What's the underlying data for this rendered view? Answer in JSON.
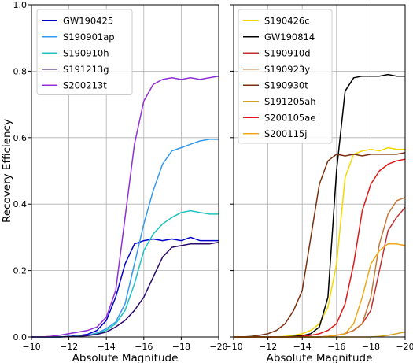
{
  "chart_data": [
    {
      "type": "line",
      "panel": "left",
      "xlabel": "Absolute Magnitude",
      "ylabel": "Recovery Efficiency",
      "xlim": [
        -10,
        -20
      ],
      "ylim": [
        0,
        1.0
      ],
      "xticks": [
        -10,
        -12,
        -14,
        -16,
        -18,
        -20
      ],
      "xtick_labels": [
        "−10",
        "−12",
        "−14",
        "−16",
        "−18",
        "−20"
      ],
      "yticks": [
        0.0,
        0.2,
        0.4,
        0.6,
        0.8,
        1.0
      ],
      "ytick_labels": [
        "0.0",
        "0.2",
        "0.4",
        "0.6",
        "0.8",
        "1.0"
      ],
      "grid": true,
      "legend_position": "upper-left",
      "x": [
        -10,
        -10.5,
        -11,
        -11.5,
        -12,
        -12.5,
        -13,
        -13.5,
        -14,
        -14.5,
        -15,
        -15.5,
        -16,
        -16.5,
        -17,
        -17.5,
        -18,
        -18.5,
        -19,
        -19.5,
        -20
      ],
      "series": [
        {
          "name": "GW190425",
          "color": "#0000cd",
          "values": [
            0.0,
            0.0,
            0.0,
            0.0,
            0.002,
            0.004,
            0.008,
            0.02,
            0.05,
            0.12,
            0.22,
            0.28,
            0.29,
            0.295,
            0.29,
            0.295,
            0.29,
            0.3,
            0.29,
            0.29,
            0.29
          ]
        },
        {
          "name": "S190901ap",
          "color": "#3399ee",
          "values": [
            0.0,
            0.0,
            0.0,
            0.0,
            0.001,
            0.003,
            0.005,
            0.012,
            0.025,
            0.045,
            0.1,
            0.22,
            0.34,
            0.44,
            0.52,
            0.56,
            0.57,
            0.58,
            0.59,
            0.595,
            0.595
          ]
        },
        {
          "name": "S190910h",
          "color": "#20c2c2",
          "values": [
            0.0,
            0.0,
            0.0,
            0.0,
            0.001,
            0.003,
            0.005,
            0.01,
            0.02,
            0.04,
            0.08,
            0.16,
            0.26,
            0.31,
            0.34,
            0.36,
            0.375,
            0.38,
            0.375,
            0.37,
            0.37
          ]
        },
        {
          "name": "S191213g",
          "color": "#2a0a6a",
          "values": [
            0.0,
            0.0,
            0.0,
            0.0,
            0.001,
            0.002,
            0.004,
            0.008,
            0.015,
            0.03,
            0.05,
            0.08,
            0.12,
            0.18,
            0.24,
            0.27,
            0.275,
            0.28,
            0.28,
            0.28,
            0.285
          ]
        },
        {
          "name": "S200213t",
          "color": "#9030d8",
          "values": [
            0.0,
            0.0,
            0.002,
            0.005,
            0.01,
            0.015,
            0.02,
            0.03,
            0.06,
            0.14,
            0.36,
            0.58,
            0.71,
            0.76,
            0.775,
            0.78,
            0.775,
            0.78,
            0.775,
            0.78,
            0.785
          ]
        }
      ]
    },
    {
      "type": "line",
      "panel": "right",
      "xlabel": "Absolute Magnitude",
      "ylabel": "",
      "xlim": [
        -10,
        -20
      ],
      "ylim": [
        0,
        1.0
      ],
      "xticks": [
        -10,
        -12,
        -14,
        -16,
        -18,
        -20
      ],
      "xtick_labels": [
        "−10",
        "−12",
        "−14",
        "−16",
        "−18",
        "−20"
      ],
      "yticks": [
        0.0,
        0.2,
        0.4,
        0.6,
        0.8,
        1.0
      ],
      "grid": true,
      "legend_position": "upper-left",
      "x": [
        -10,
        -10.5,
        -11,
        -11.5,
        -12,
        -12.5,
        -13,
        -13.5,
        -14,
        -14.5,
        -15,
        -15.5,
        -16,
        -16.5,
        -17,
        -17.5,
        -18,
        -18.5,
        -19,
        -19.5,
        -20
      ],
      "series": [
        {
          "name": "S190426c",
          "color": "#f5d800",
          "values": [
            0.0,
            0.0,
            0.0,
            0.0,
            0.0,
            0.0,
            0.002,
            0.005,
            0.01,
            0.02,
            0.04,
            0.09,
            0.22,
            0.48,
            0.55,
            0.56,
            0.565,
            0.56,
            0.57,
            0.565,
            0.565
          ]
        },
        {
          "name": "GW190814",
          "color": "#000000",
          "values": [
            0.0,
            0.0,
            0.0,
            0.0,
            0.0,
            0.0,
            0.0,
            0.002,
            0.004,
            0.01,
            0.03,
            0.12,
            0.5,
            0.74,
            0.78,
            0.785,
            0.785,
            0.785,
            0.79,
            0.785,
            0.785
          ]
        },
        {
          "name": "S190910d",
          "color": "#c03030",
          "values": [
            0.0,
            0.0,
            0.0,
            0.0,
            0.0,
            0.0,
            0.0,
            0.0,
            0.0,
            0.0,
            0.0,
            0.002,
            0.005,
            0.01,
            0.02,
            0.04,
            0.08,
            0.2,
            0.32,
            0.36,
            0.39
          ]
        },
        {
          "name": "S190923y",
          "color": "#c87838",
          "values": [
            0.0,
            0.0,
            0.0,
            0.0,
            0.0,
            0.0,
            0.0,
            0.0,
            0.0,
            0.0,
            0.0,
            0.002,
            0.005,
            0.01,
            0.02,
            0.04,
            0.12,
            0.28,
            0.37,
            0.41,
            0.42
          ]
        },
        {
          "name": "S190930t",
          "color": "#7a3010",
          "values": [
            0.0,
            0.0,
            0.002,
            0.005,
            0.01,
            0.02,
            0.04,
            0.08,
            0.14,
            0.3,
            0.46,
            0.53,
            0.55,
            0.545,
            0.55,
            0.545,
            0.55,
            0.55,
            0.55,
            0.55,
            0.555
          ]
        },
        {
          "name": "S191205ah",
          "color": "#d4a020",
          "values": [
            0.0,
            0.0,
            0.0,
            0.0,
            0.0,
            0.0,
            0.0,
            0.0,
            0.0,
            0.0,
            0.0,
            0.0,
            0.0,
            0.0,
            0.0,
            0.0,
            0.0,
            0.002,
            0.005,
            0.01,
            0.015
          ]
        },
        {
          "name": "S200105ae",
          "color": "#e01818",
          "values": [
            0.0,
            0.0,
            0.0,
            0.0,
            0.0,
            0.0,
            0.0,
            0.0,
            0.002,
            0.005,
            0.01,
            0.02,
            0.04,
            0.1,
            0.22,
            0.38,
            0.46,
            0.5,
            0.52,
            0.53,
            0.535
          ]
        },
        {
          "name": "S200115j",
          "color": "#f0a818",
          "values": [
            0.0,
            0.0,
            0.0,
            0.0,
            0.0,
            0.0,
            0.0,
            0.0,
            0.0,
            0.0,
            0.0,
            0.002,
            0.005,
            0.01,
            0.04,
            0.12,
            0.22,
            0.26,
            0.28,
            0.28,
            0.275
          ]
        }
      ]
    }
  ]
}
